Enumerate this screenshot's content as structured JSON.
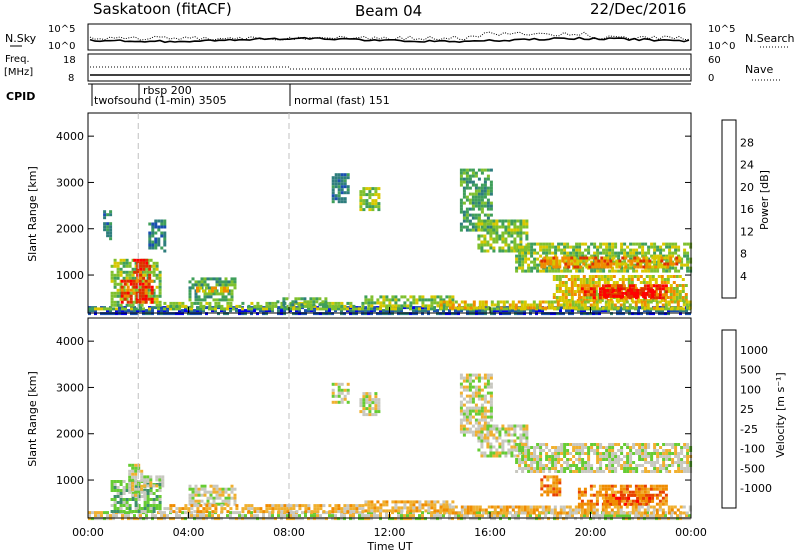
{
  "header": {
    "title": "Saskatoon (fitACF)",
    "beam": "Beam 04",
    "date": "22/Dec/2016"
  },
  "noise_panel": {
    "left_label": "N.Sky",
    "left_ticks": [
      "10^5",
      "10^0"
    ],
    "right_label": "N.Search",
    "right_ticks": [
      "10^5",
      "10^0"
    ]
  },
  "freq_panel": {
    "left_label_line1": "Freq.",
    "left_label_line2": "[MHz]",
    "left_ticks": [
      "18",
      "8"
    ],
    "right_label": "Nave",
    "right_ticks": [
      "60",
      "0"
    ]
  },
  "cpid_panel": {
    "label": "CPID",
    "segments": [
      {
        "label": "twofsound (1-min) 3505"
      },
      {
        "label": "rbsp 200"
      },
      {
        "label": "normal (fast) 151"
      }
    ]
  },
  "power_panel": {
    "ylabel": "Slant Range [km]",
    "colorbar_label": "Power [dB]",
    "colorbar_ticks": [
      "28",
      "24",
      "20",
      "16",
      "12",
      "8",
      "4"
    ]
  },
  "velocity_panel": {
    "ylabel": "Slant Range [km]",
    "colorbar_label": "Velocity [m s⁻¹]",
    "colorbar_ticks": [
      "1000",
      "500",
      "100",
      "25",
      "-25",
      "-100",
      "-500",
      "-1000"
    ]
  },
  "xaxis": {
    "label": "Time UT",
    "ticks": [
      "00:00",
      "04:00",
      "08:00",
      "12:00",
      "16:00",
      "20:00",
      "00:00"
    ]
  },
  "colors": {
    "power": [
      "#0000ee",
      "#1a4fb0",
      "#2e7d7d",
      "#3f9f5a",
      "#7fc02e",
      "#d8c800",
      "#f08c00",
      "#e03000",
      "#ff0000"
    ],
    "velocity": [
      "#1a3faa",
      "#2a6fc9",
      "#3c8f6a",
      "#66cc33",
      "#c8c8c0",
      "#f0b030",
      "#f08c00",
      "#e84000",
      "#ff0000"
    ],
    "gridline": "#c0c0c0"
  },
  "chart_data": {
    "type": "heatmap",
    "x_range_hours": [
      0,
      24
    ],
    "y_range_km": [
      180,
      4500
    ],
    "y_ticks": [
      1000,
      2000,
      3000,
      4000
    ],
    "mode_change_hours": [
      2,
      8
    ],
    "power_regions": [
      {
        "t0": 0.0,
        "t1": 24.0,
        "r0": 200,
        "r1": 330,
        "level": 1
      },
      {
        "t0": 0.0,
        "t1": 24.0,
        "r0": 240,
        "r1": 300,
        "level": 4
      },
      {
        "t0": 0.6,
        "t1": 0.9,
        "r0": 1800,
        "r1": 2400,
        "level": 2
      },
      {
        "t0": 0.9,
        "t1": 2.9,
        "r0": 350,
        "r1": 1350,
        "level": 4
      },
      {
        "t0": 1.3,
        "t1": 2.6,
        "r0": 400,
        "r1": 900,
        "level": 7
      },
      {
        "t0": 1.8,
        "t1": 2.4,
        "r0": 900,
        "r1": 1350,
        "level": 7
      },
      {
        "t0": 2.4,
        "t1": 3.0,
        "r0": 1500,
        "r1": 2200,
        "level": 2
      },
      {
        "t0": 4.0,
        "t1": 5.9,
        "r0": 450,
        "r1": 950,
        "level": 3
      },
      {
        "t0": 4.3,
        "t1": 5.6,
        "r0": 650,
        "r1": 750,
        "level": 5
      },
      {
        "t0": 3.0,
        "t1": 11.0,
        "r0": 300,
        "r1": 420,
        "level": 4
      },
      {
        "t0": 7.5,
        "t1": 9.5,
        "r0": 350,
        "r1": 520,
        "level": 3
      },
      {
        "t0": 9.7,
        "t1": 10.4,
        "r0": 2600,
        "r1": 3200,
        "level": 2
      },
      {
        "t0": 10.8,
        "t1": 11.6,
        "r0": 2400,
        "r1": 2900,
        "level": 4
      },
      {
        "t0": 11.0,
        "t1": 14.5,
        "r0": 320,
        "r1": 560,
        "level": 4
      },
      {
        "t0": 14.8,
        "t1": 16.0,
        "r0": 2000,
        "r1": 3300,
        "level": 3
      },
      {
        "t0": 15.5,
        "t1": 17.5,
        "r0": 1500,
        "r1": 2200,
        "level": 4
      },
      {
        "t0": 17.0,
        "t1": 24.0,
        "r0": 1100,
        "r1": 1700,
        "level": 4
      },
      {
        "t0": 18.0,
        "t1": 23.5,
        "r0": 1150,
        "r1": 1400,
        "level": 6
      },
      {
        "t0": 18.5,
        "t1": 23.8,
        "r0": 450,
        "r1": 1000,
        "level": 5
      },
      {
        "t0": 19.5,
        "t1": 23.0,
        "r0": 500,
        "r1": 800,
        "level": 7
      },
      {
        "t0": 20.5,
        "t1": 22.5,
        "r0": 550,
        "r1": 700,
        "level": 8
      },
      {
        "t0": 14.0,
        "t1": 24.0,
        "r0": 300,
        "r1": 450,
        "level": 5
      }
    ],
    "velocity_regions": [
      {
        "t0": 0.0,
        "t1": 24.0,
        "r0": 200,
        "r1": 330,
        "level": 4
      },
      {
        "t0": 0.9,
        "t1": 2.9,
        "r0": 350,
        "r1": 1000,
        "level": 3
      },
      {
        "t0": 1.6,
        "t1": 2.3,
        "r0": 700,
        "r1": 1350,
        "level": 4
      },
      {
        "t0": 2.2,
        "t1": 3.0,
        "r0": 900,
        "r1": 1100,
        "level": 4
      },
      {
        "t0": 4.0,
        "t1": 5.9,
        "r0": 500,
        "r1": 900,
        "level": 4
      },
      {
        "t0": 3.0,
        "t1": 11.0,
        "r0": 300,
        "r1": 480,
        "level": 5
      },
      {
        "t0": 9.7,
        "t1": 10.4,
        "r0": 2700,
        "r1": 3100,
        "level": 4
      },
      {
        "t0": 10.8,
        "t1": 11.6,
        "r0": 2400,
        "r1": 2900,
        "level": 4
      },
      {
        "t0": 11.0,
        "t1": 14.5,
        "r0": 320,
        "r1": 560,
        "level": 5
      },
      {
        "t0": 14.8,
        "t1": 16.0,
        "r0": 2000,
        "r1": 3300,
        "level": 4
      },
      {
        "t0": 15.5,
        "t1": 17.5,
        "r0": 1500,
        "r1": 2200,
        "level": 4
      },
      {
        "t0": 17.0,
        "t1": 24.0,
        "r0": 1200,
        "r1": 1800,
        "level": 4
      },
      {
        "t0": 18.0,
        "t1": 18.8,
        "r0": 700,
        "r1": 1100,
        "level": 6
      },
      {
        "t0": 19.5,
        "t1": 23.0,
        "r0": 450,
        "r1": 900,
        "level": 6
      },
      {
        "t0": 20.5,
        "t1": 22.5,
        "r0": 500,
        "r1": 700,
        "level": 7
      },
      {
        "t0": 14.0,
        "t1": 24.0,
        "r0": 300,
        "r1": 450,
        "level": 5
      }
    ]
  }
}
